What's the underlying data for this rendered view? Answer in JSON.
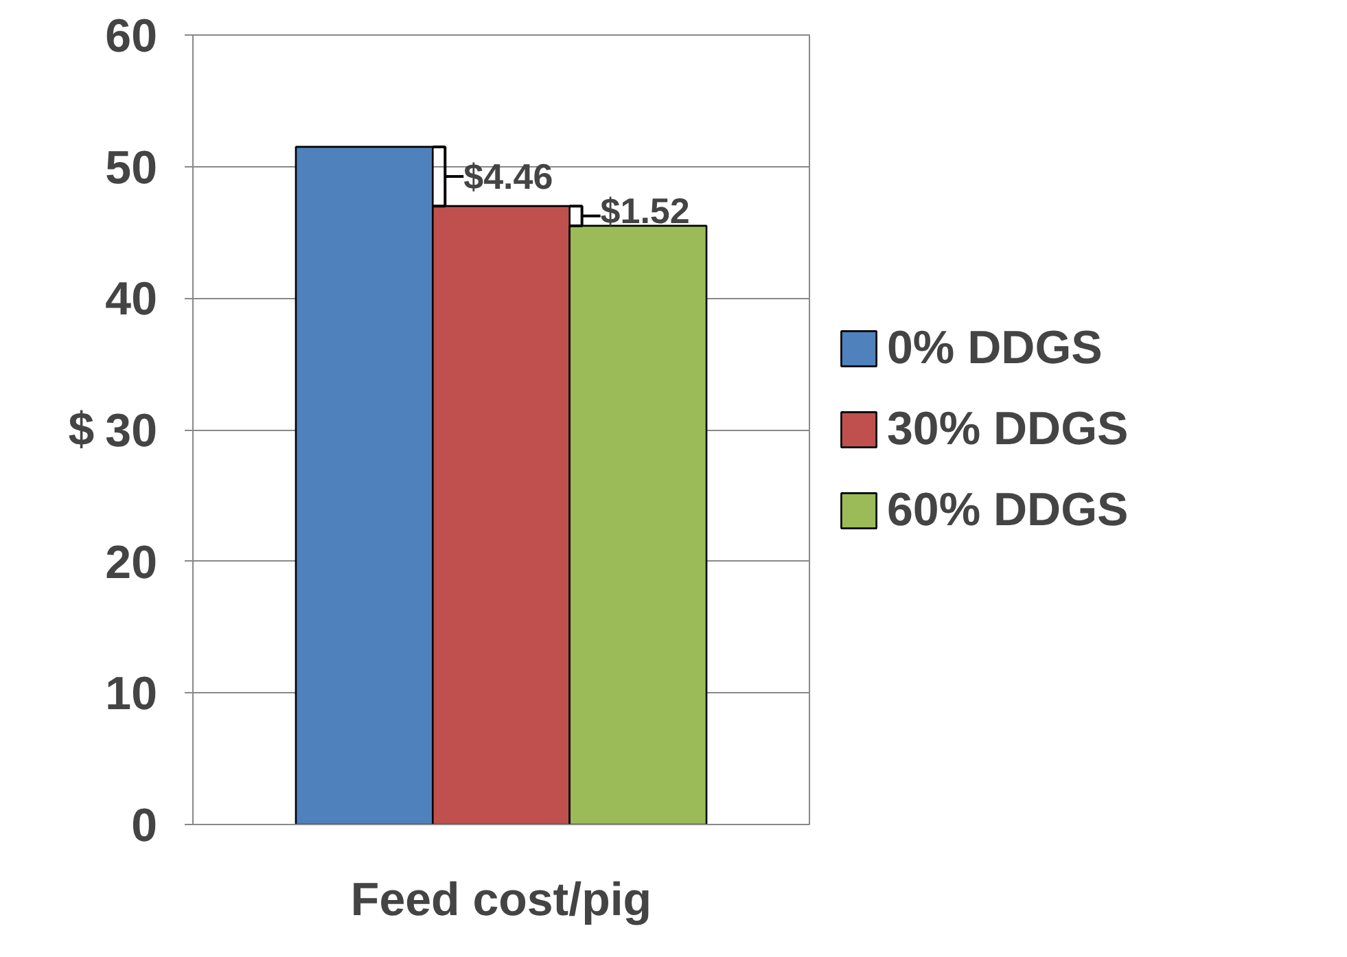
{
  "chart_data": {
    "type": "bar",
    "ylabel": "$",
    "categories": [
      "Feed cost/pig"
    ],
    "series": [
      {
        "name": "0% DDGS",
        "color": "#4f81bd",
        "values": [
          51.5
        ]
      },
      {
        "name": "30% DDGS",
        "color": "#c0504d",
        "values": [
          47.0
        ]
      },
      {
        "name": "60% DDGS",
        "color": "#9bbb59",
        "values": [
          45.5
        ]
      }
    ],
    "ylim": [
      0,
      60
    ],
    "yticks": [
      0,
      10,
      20,
      30,
      40,
      50,
      60
    ],
    "grid": "y",
    "legend": "right",
    "annotations": [
      "$4.46",
      "$1.52"
    ]
  }
}
